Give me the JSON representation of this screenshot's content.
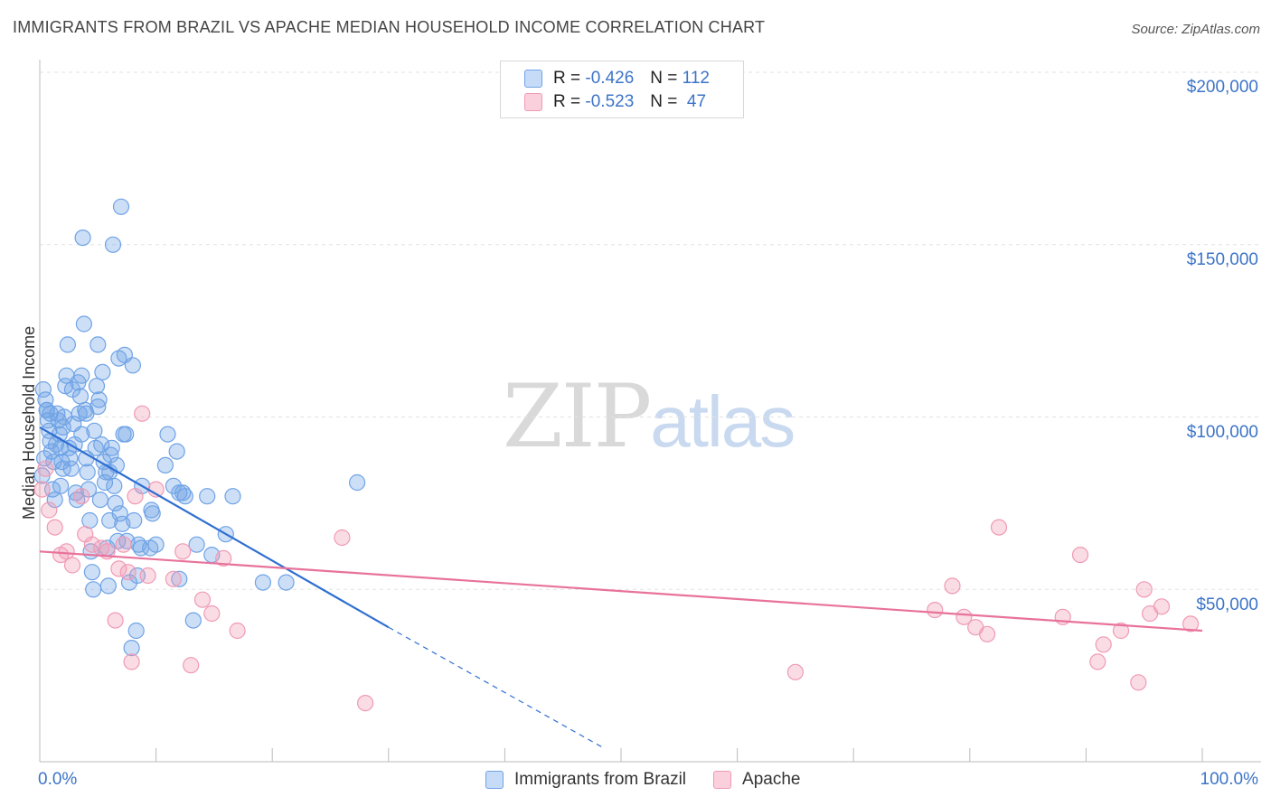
{
  "title": "IMMIGRANTS FROM BRAZIL VS APACHE MEDIAN HOUSEHOLD INCOME CORRELATION CHART",
  "source": "Source: ZipAtlas.com",
  "watermark": {
    "part1": "ZIP",
    "part2": "atlas"
  },
  "legend": [
    {
      "r_label": "R = ",
      "r_value": "-0.426",
      "n_label": "N = ",
      "n_value": "112",
      "color": "#6fa3e6"
    },
    {
      "r_label": "R = ",
      "r_value": "-0.523",
      "n_label": "N = ",
      "n_value": " 47",
      "color": "#f09ab5"
    }
  ],
  "chart_data": {
    "type": "scatter",
    "title": "IMMIGRANTS FROM BRAZIL VS APACHE MEDIAN HOUSEHOLD INCOME CORRELATION CHART",
    "xlabel": "",
    "ylabel": "Median Household Income",
    "xlim": [
      0,
      100
    ],
    "ylim": [
      0,
      200000
    ],
    "x_tick_labels": [
      "0.0%",
      "100.0%"
    ],
    "y_ticks": [
      50000,
      100000,
      150000,
      200000
    ],
    "y_tick_labels": [
      "$50,000",
      "$100,000",
      "$150,000",
      "$200,000"
    ],
    "grid": true,
    "series": [
      {
        "name": "Immigrants from Brazil",
        "color": "#6fa3e6",
        "line_color": "#2f6fd1",
        "trend": {
          "x0": 0,
          "y0": 97000,
          "x1": 30,
          "y1": 39000,
          "dash_x1": 48.5,
          "dash_y1": 4000
        },
        "points": [
          [
            0.3,
            108000
          ],
          [
            0.5,
            105000
          ],
          [
            0.6,
            102000
          ],
          [
            0.7,
            99000
          ],
          [
            0.8,
            96000
          ],
          [
            0.9,
            93000
          ],
          [
            1.0,
            90000
          ],
          [
            0.4,
            88000
          ],
          [
            1.2,
            87000
          ],
          [
            1.5,
            101000
          ],
          [
            1.6,
            99000
          ],
          [
            1.7,
            95000
          ],
          [
            1.8,
            91000
          ],
          [
            1.9,
            87000
          ],
          [
            2.0,
            85000
          ],
          [
            2.1,
            100000
          ],
          [
            2.2,
            109000
          ],
          [
            2.3,
            112000
          ],
          [
            2.4,
            121000
          ],
          [
            2.5,
            91000
          ],
          [
            2.6,
            88000
          ],
          [
            2.7,
            85000
          ],
          [
            2.8,
            108000
          ],
          [
            2.9,
            98000
          ],
          [
            3.0,
            92000
          ],
          [
            3.1,
            78000
          ],
          [
            3.2,
            76000
          ],
          [
            3.3,
            110000
          ],
          [
            3.4,
            101000
          ],
          [
            3.5,
            106000
          ],
          [
            3.6,
            112000
          ],
          [
            3.7,
            152000
          ],
          [
            3.8,
            127000
          ],
          [
            3.9,
            102000
          ],
          [
            4.0,
            88000
          ],
          [
            4.1,
            84000
          ],
          [
            4.2,
            79000
          ],
          [
            4.3,
            70000
          ],
          [
            4.4,
            61000
          ],
          [
            4.5,
            55000
          ],
          [
            4.6,
            50000
          ],
          [
            4.7,
            96000
          ],
          [
            4.8,
            91000
          ],
          [
            4.9,
            109000
          ],
          [
            5.0,
            121000
          ],
          [
            5.1,
            105000
          ],
          [
            5.2,
            76000
          ],
          [
            5.3,
            92000
          ],
          [
            5.4,
            113000
          ],
          [
            5.5,
            87000
          ],
          [
            5.6,
            81000
          ],
          [
            5.7,
            84000
          ],
          [
            5.8,
            62000
          ],
          [
            5.9,
            51000
          ],
          [
            6.0,
            70000
          ],
          [
            6.1,
            89000
          ],
          [
            6.2,
            91000
          ],
          [
            6.3,
            150000
          ],
          [
            6.4,
            80000
          ],
          [
            6.5,
            75000
          ],
          [
            6.6,
            86000
          ],
          [
            6.7,
            64000
          ],
          [
            6.8,
            117000
          ],
          [
            6.9,
            72000
          ],
          [
            7.0,
            161000
          ],
          [
            7.1,
            69000
          ],
          [
            7.2,
            95000
          ],
          [
            7.3,
            118000
          ],
          [
            7.4,
            95000
          ],
          [
            7.5,
            64000
          ],
          [
            7.7,
            52000
          ],
          [
            7.9,
            33000
          ],
          [
            8.0,
            115000
          ],
          [
            8.1,
            70000
          ],
          [
            8.3,
            38000
          ],
          [
            8.4,
            54000
          ],
          [
            8.5,
            63000
          ],
          [
            8.8,
            80000
          ],
          [
            9.5,
            62000
          ],
          [
            9.6,
            73000
          ],
          [
            9.7,
            72000
          ],
          [
            10.0,
            63000
          ],
          [
            10.8,
            86000
          ],
          [
            11.0,
            95000
          ],
          [
            11.5,
            80000
          ],
          [
            11.8,
            90000
          ],
          [
            12.0,
            78000
          ],
          [
            12.3,
            78000
          ],
          [
            12.5,
            77000
          ],
          [
            13.2,
            41000
          ],
          [
            13.5,
            63000
          ],
          [
            14.4,
            77000
          ],
          [
            14.8,
            60000
          ],
          [
            16.0,
            66000
          ],
          [
            16.6,
            77000
          ],
          [
            19.2,
            52000
          ],
          [
            21.2,
            52000
          ],
          [
            27.3,
            81000
          ],
          [
            0.2,
            83000
          ],
          [
            1.1,
            79000
          ],
          [
            1.3,
            76000
          ],
          [
            2.0,
            97000
          ],
          [
            3.6,
            95000
          ],
          [
            4.0,
            101000
          ],
          [
            5.0,
            103000
          ],
          [
            0.9,
            101000
          ],
          [
            1.4,
            92000
          ],
          [
            6.0,
            84000
          ],
          [
            8.7,
            62000
          ],
          [
            12.0,
            53000
          ],
          [
            1.8,
            80000
          ],
          [
            0.6,
            102000
          ]
        ]
      },
      {
        "name": "Apache",
        "color": "#f09ab5",
        "line_color": "#e8729b",
        "trend": {
          "x0": 0,
          "y0": 61000,
          "x1": 100,
          "y1": 38000
        },
        "points": [
          [
            0.2,
            79000
          ],
          [
            0.5,
            85000
          ],
          [
            0.8,
            73000
          ],
          [
            1.3,
            68000
          ],
          [
            1.8,
            60000
          ],
          [
            2.3,
            61000
          ],
          [
            2.8,
            57000
          ],
          [
            3.6,
            77000
          ],
          [
            3.9,
            66000
          ],
          [
            4.5,
            63000
          ],
          [
            5.3,
            62000
          ],
          [
            5.8,
            61000
          ],
          [
            6.5,
            41000
          ],
          [
            6.8,
            56000
          ],
          [
            7.2,
            63000
          ],
          [
            7.6,
            55000
          ],
          [
            7.9,
            29000
          ],
          [
            8.2,
            77000
          ],
          [
            8.8,
            101000
          ],
          [
            9.3,
            54000
          ],
          [
            10.0,
            79000
          ],
          [
            11.5,
            53000
          ],
          [
            12.3,
            61000
          ],
          [
            13.0,
            28000
          ],
          [
            14.0,
            47000
          ],
          [
            14.8,
            43000
          ],
          [
            15.8,
            59000
          ],
          [
            17.0,
            38000
          ],
          [
            26.0,
            65000
          ],
          [
            28.0,
            17000
          ],
          [
            65.0,
            26000
          ],
          [
            77.0,
            44000
          ],
          [
            78.5,
            51000
          ],
          [
            79.5,
            42000
          ],
          [
            80.5,
            39000
          ],
          [
            81.5,
            37000
          ],
          [
            82.5,
            68000
          ],
          [
            88.0,
            42000
          ],
          [
            89.5,
            60000
          ],
          [
            91.0,
            29000
          ],
          [
            91.5,
            34000
          ],
          [
            93.0,
            38000
          ],
          [
            94.5,
            23000
          ],
          [
            95.0,
            50000
          ],
          [
            95.5,
            43000
          ],
          [
            96.5,
            45000
          ],
          [
            99.0,
            40000
          ]
        ]
      }
    ]
  },
  "bottom_legend": [
    {
      "label": "Immigrants from Brazil",
      "color": "#6fa3e6"
    },
    {
      "label": "Apache",
      "color": "#f09ab5"
    }
  ]
}
